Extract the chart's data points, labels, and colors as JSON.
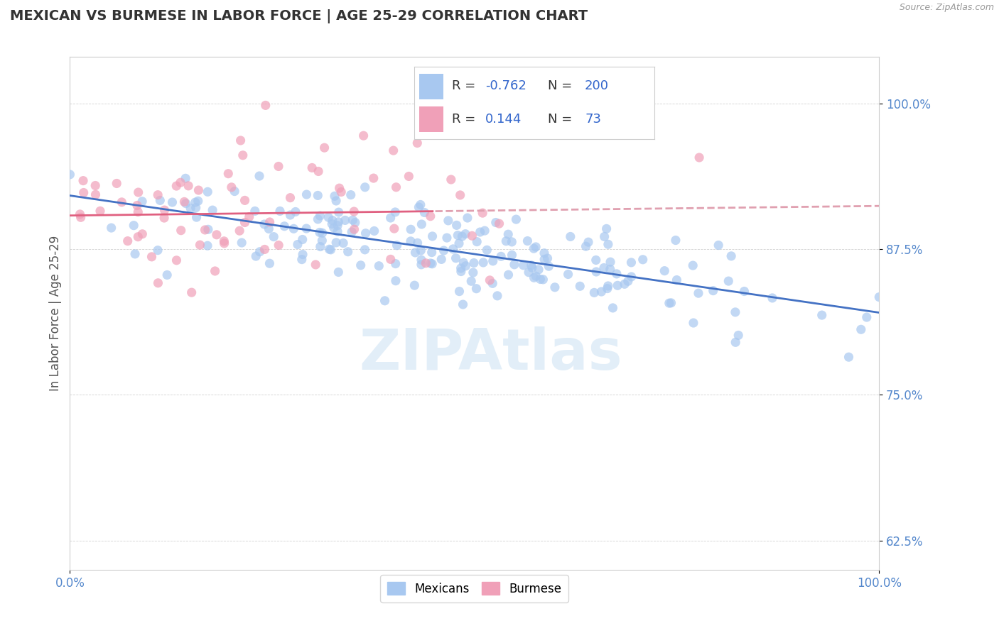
{
  "title": "MEXICAN VS BURMESE IN LABOR FORCE | AGE 25-29 CORRELATION CHART",
  "source": "Source: ZipAtlas.com",
  "ylabel": "In Labor Force | Age 25-29",
  "xlim": [
    0.0,
    1.0
  ],
  "ylim": [
    0.6,
    1.04
  ],
  "yticks": [
    0.625,
    0.75,
    0.875,
    1.0
  ],
  "ytick_labels": [
    "62.5%",
    "75.0%",
    "87.5%",
    "100.0%"
  ],
  "xticks": [
    0.0,
    1.0
  ],
  "xtick_labels": [
    "0.0%",
    "100.0%"
  ],
  "blue_R": -0.762,
  "blue_N": 200,
  "pink_R": 0.144,
  "pink_N": 73,
  "blue_color": "#a8c8f0",
  "pink_color": "#f0a0b8",
  "blue_line_color": "#4472c4",
  "pink_line_color": "#e06080",
  "pink_dash_color": "#e0a0b0",
  "legend_text_color": "#3366cc",
  "watermark": "ZIPAtlas",
  "background_color": "#ffffff",
  "seed_blue": 42,
  "seed_pink": 7
}
